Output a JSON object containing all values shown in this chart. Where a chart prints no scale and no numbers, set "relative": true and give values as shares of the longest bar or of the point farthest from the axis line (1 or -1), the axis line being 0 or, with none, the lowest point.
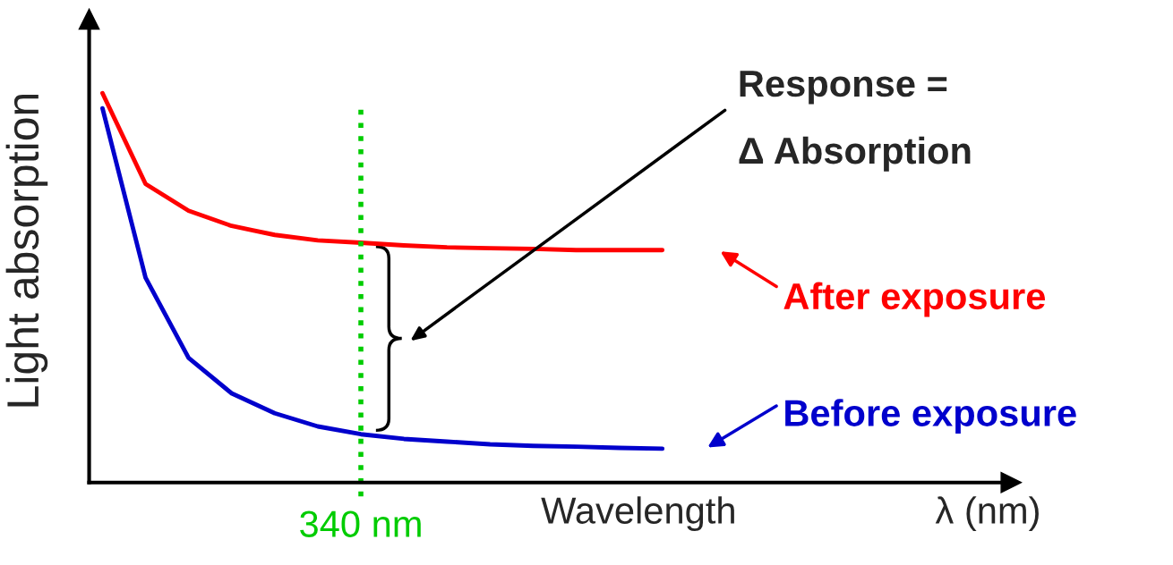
{
  "chart_data": {
    "type": "line",
    "relative": true,
    "xlabel": "Wavelength",
    "ylabel": "Light absorption",
    "categories": [
      null,
      null,
      null,
      null,
      null,
      null,
      null,
      null,
      null,
      null,
      null,
      null,
      null,
      null
    ],
    "series": [
      {
        "name": "After exposure",
        "color": "#ff0000",
        "values": [
          1,
          0.767,
          0.698,
          0.659,
          0.636,
          0.622,
          0.616,
          0.609,
          0.604,
          0.602,
          0.6,
          0.597,
          0.597,
          0.597
        ]
      },
      {
        "name": "Before exposure",
        "color": "#0000cc",
        "values": [
          0.961,
          0.526,
          0.32,
          0.229,
          0.178,
          0.144,
          0.124,
          0.112,
          0.105,
          0.098,
          0.094,
          0.092,
          0.089,
          0.087
        ]
      }
    ],
    "annotations": [
      "Response =\nΔ Absorption",
      "λ (nm)",
      "340 nm"
    ],
    "grid": false,
    "legend": "right",
    "marker": "none",
    "line_style": "solid"
  }
}
